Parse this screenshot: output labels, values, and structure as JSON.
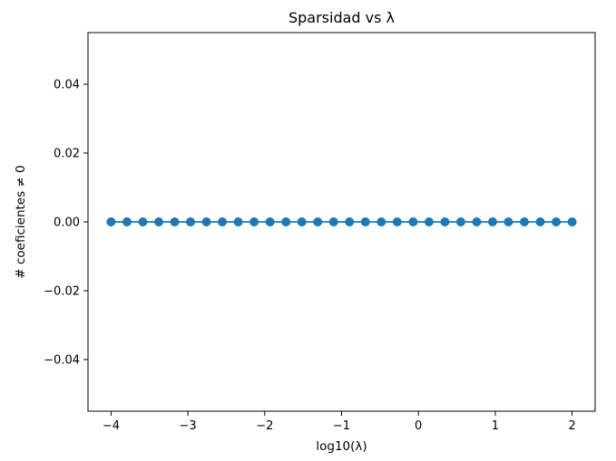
{
  "chart_data": {
    "type": "line",
    "title": "Sparsidad vs λ",
    "xlabel": "log10(λ)",
    "ylabel": "# coeficientes ≠ 0",
    "xlim": [
      -4.3,
      2.3
    ],
    "ylim": [
      -0.055,
      0.055
    ],
    "x_ticks": [
      -4,
      -3,
      -2,
      -1,
      0,
      1,
      2
    ],
    "x_tick_labels": [
      "−4",
      "−3",
      "−2",
      "−1",
      "0",
      "1",
      "2"
    ],
    "y_ticks": [
      0.04,
      0.02,
      0.0,
      -0.02,
      -0.04
    ],
    "y_tick_labels": [
      "0.04",
      "0.02",
      "0.00",
      "−0.02",
      "−0.04"
    ],
    "grid": false,
    "series": [
      {
        "color": "#1f77b4",
        "marker": "circle",
        "x": [
          -4.0,
          -3.793,
          -3.586,
          -3.379,
          -3.172,
          -2.966,
          -2.759,
          -2.552,
          -2.345,
          -2.138,
          -1.931,
          -1.724,
          -1.517,
          -1.31,
          -1.103,
          -0.897,
          -0.69,
          -0.483,
          -0.276,
          -0.069,
          0.138,
          0.345,
          0.552,
          0.759,
          0.966,
          1.172,
          1.379,
          1.586,
          1.793,
          2.0
        ],
        "y": [
          0,
          0,
          0,
          0,
          0,
          0,
          0,
          0,
          0,
          0,
          0,
          0,
          0,
          0,
          0,
          0,
          0,
          0,
          0,
          0,
          0,
          0,
          0,
          0,
          0,
          0,
          0,
          0,
          0,
          0
        ]
      }
    ]
  }
}
